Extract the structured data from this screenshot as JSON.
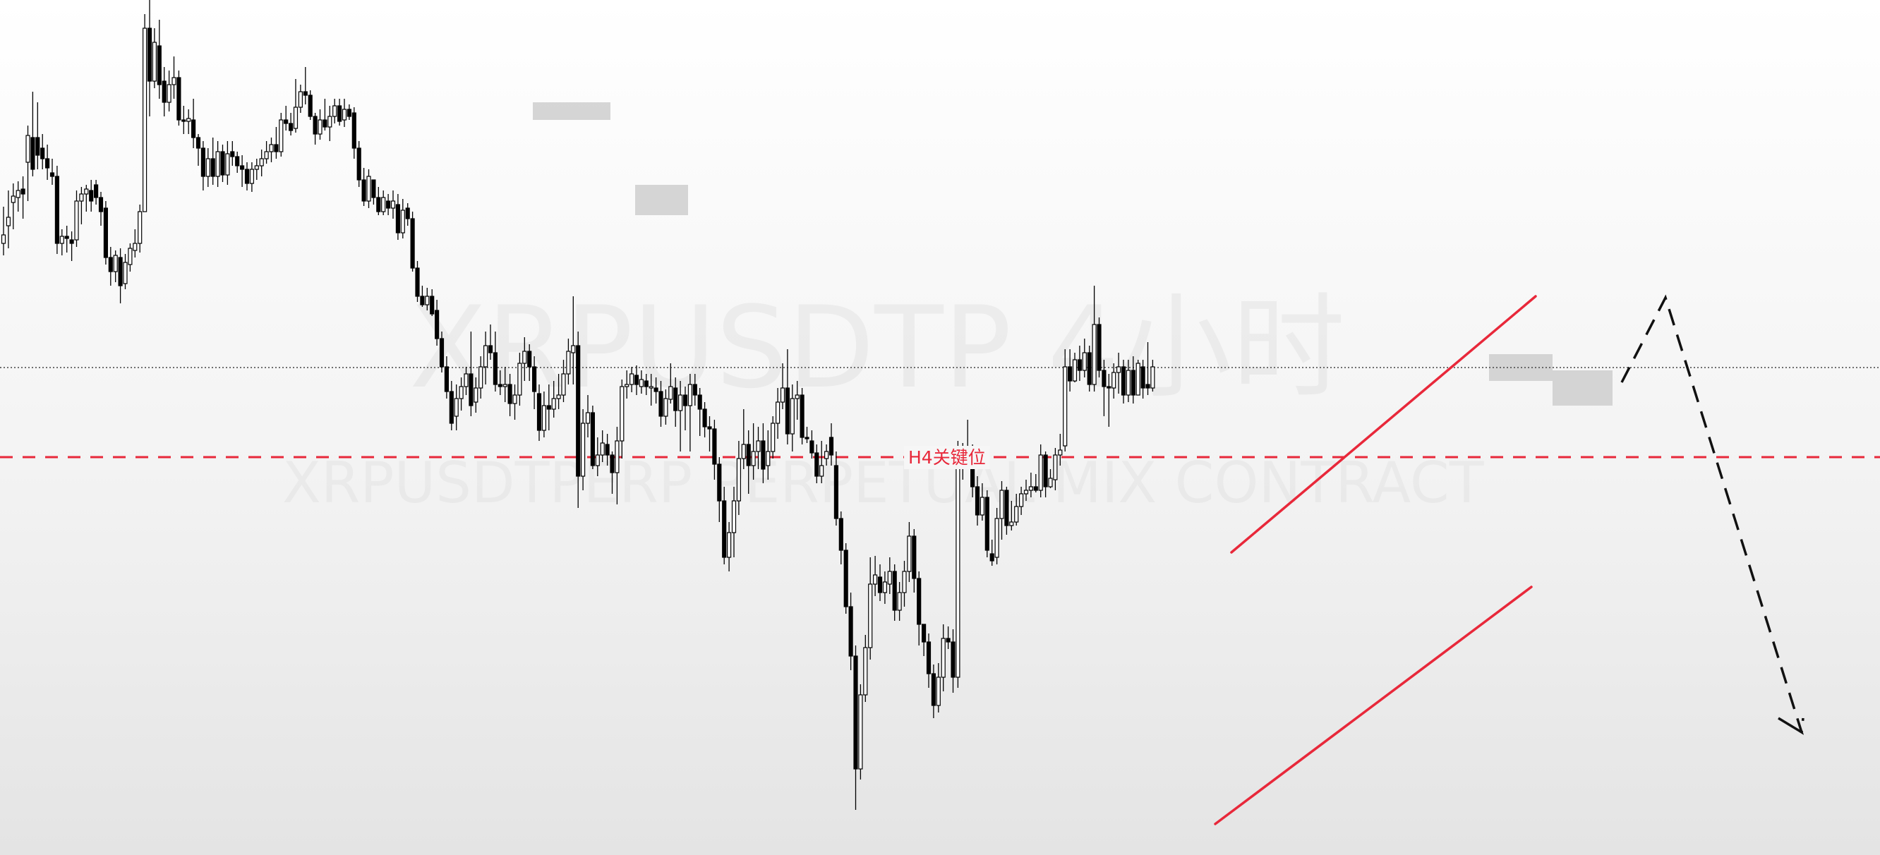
{
  "watermark": {
    "title": "XRPUSDTP 4小时",
    "subtitle": "XRPUSDTPERP PERPETUAL MIX CONTRACT"
  },
  "colors": {
    "bull_body": "#ffffff",
    "bear_body": "#000000",
    "wick": "#000000",
    "trendline": "#e8283a",
    "level": "#e8283a",
    "projection": "#111111",
    "zone": "#c8c8c8"
  },
  "chart_data": {
    "type": "candlestick",
    "title": "",
    "xlabel": "",
    "ylabel": "",
    "ylim": [
      0,
      1212
    ],
    "grid": false,
    "candles": [
      [
        345,
        333,
        293,
        362
      ],
      [
        320,
        308,
        270,
        352
      ],
      [
        287,
        278,
        260,
        325
      ],
      [
        280,
        270,
        257,
        300
      ],
      [
        268,
        275,
        250,
        310
      ],
      [
        230,
        192,
        178,
        285
      ],
      [
        195,
        240,
        130,
        250
      ],
      [
        195,
        220,
        145,
        240
      ],
      [
        210,
        225,
        190,
        240
      ],
      [
        225,
        238,
        205,
        255
      ],
      [
        245,
        250,
        225,
        262
      ],
      [
        250,
        345,
        235,
        360
      ],
      [
        345,
        335,
        325,
        362
      ],
      [
        335,
        338,
        320,
        358
      ],
      [
        340,
        345,
        328,
        370
      ],
      [
        340,
        285,
        270,
        350
      ],
      [
        285,
        275,
        265,
        318
      ],
      [
        275,
        268,
        262,
        300
      ],
      [
        270,
        285,
        255,
        300
      ],
      [
        262,
        280,
        255,
        290
      ],
      [
        280,
        300,
        272,
        320
      ],
      [
        295,
        365,
        285,
        375
      ],
      [
        365,
        385,
        350,
        405
      ],
      [
        385,
        362,
        355,
        400
      ],
      [
        365,
        405,
        352,
        430
      ],
      [
        402,
        372,
        360,
        410
      ],
      [
        375,
        352,
        345,
        385
      ],
      [
        355,
        345,
        325,
        365
      ],
      [
        345,
        300,
        290,
        358
      ],
      [
        300,
        40,
        20,
        300
      ],
      [
        40,
        115,
        0,
        165
      ],
      [
        115,
        60,
        40,
        125
      ],
      [
        65,
        120,
        28,
        140
      ],
      [
        115,
        145,
        95,
        165
      ],
      [
        145,
        120,
        100,
        158
      ],
      [
        120,
        110,
        80,
        140
      ],
      [
        110,
        170,
        100,
        178
      ],
      [
        170,
        172,
        150,
        190
      ],
      [
        172,
        168,
        155,
        190
      ],
      [
        170,
        195,
        140,
        210
      ],
      [
        195,
        210,
        190,
        235
      ],
      [
        210,
        250,
        200,
        270
      ],
      [
        250,
        225,
        210,
        265
      ],
      [
        225,
        250,
        195,
        262
      ],
      [
        250,
        215,
        200,
        265
      ],
      [
        215,
        248,
        205,
        258
      ],
      [
        248,
        218,
        200,
        262
      ],
      [
        215,
        222,
        200,
        235
      ],
      [
        222,
        235,
        215,
        245
      ],
      [
        235,
        240,
        220,
        265
      ],
      [
        240,
        260,
        230,
        270
      ],
      [
        260,
        240,
        230,
        272
      ],
      [
        240,
        235,
        225,
        255
      ],
      [
        235,
        225,
        212,
        250
      ],
      [
        225,
        215,
        200,
        232
      ],
      [
        215,
        205,
        195,
        230
      ],
      [
        205,
        215,
        180,
        225
      ],
      [
        215,
        170,
        160,
        222
      ],
      [
        170,
        175,
        150,
        185
      ],
      [
        175,
        185,
        160,
        192
      ],
      [
        182,
        152,
        112,
        188
      ],
      [
        152,
        130,
        120,
        160
      ],
      [
        130,
        135,
        95,
        148
      ],
      [
        135,
        165,
        128,
        170
      ],
      [
        165,
        190,
        160,
        205
      ],
      [
        190,
        170,
        155,
        198
      ],
      [
        170,
        180,
        140,
        185
      ],
      [
        180,
        165,
        150,
        200
      ],
      [
        165,
        150,
        140,
        175
      ],
      [
        150,
        172,
        140,
        178
      ],
      [
        170,
        155,
        140,
        180
      ],
      [
        155,
        165,
        148,
        170
      ],
      [
        160,
        210,
        152,
        225
      ],
      [
        210,
        255,
        200,
        265
      ],
      [
        255,
        285,
        238,
        292
      ],
      [
        285,
        250,
        240,
        295
      ],
      [
        255,
        280,
        265,
        290
      ],
      [
        280,
        300,
        265,
        305
      ],
      [
        300,
        280,
        270,
        305
      ],
      [
        285,
        295,
        275,
        305
      ],
      [
        295,
        285,
        270,
        310
      ],
      [
        290,
        330,
        275,
        340
      ],
      [
        330,
        298,
        282,
        338
      ],
      [
        295,
        310,
        288,
        320
      ],
      [
        310,
        380,
        300,
        385
      ],
      [
        380,
        420,
        370,
        428
      ],
      [
        420,
        432,
        405,
        435
      ],
      [
        432,
        420,
        408,
        440
      ],
      [
        420,
        445,
        410,
        448
      ],
      [
        440,
        480,
        425,
        490
      ],
      [
        480,
        520,
        470,
        528
      ],
      [
        520,
        555,
        505,
        565
      ],
      [
        555,
        600,
        540,
        610
      ],
      [
        590,
        565,
        545,
        610
      ],
      [
        565,
        548,
        535,
        582
      ],
      [
        548,
        530,
        520,
        560
      ],
      [
        530,
        575,
        470,
        590
      ],
      [
        570,
        550,
        535,
        585
      ],
      [
        550,
        520,
        505,
        565
      ],
      [
        520,
        490,
        470,
        545
      ],
      [
        490,
        500,
        460,
        510
      ],
      [
        500,
        545,
        470,
        555
      ],
      [
        545,
        548,
        525,
        560
      ],
      [
        548,
        545,
        520,
        570
      ],
      [
        545,
        572,
        530,
        590
      ],
      [
        572,
        560,
        545,
        595
      ],
      [
        560,
        515,
        500,
        575
      ],
      [
        515,
        498,
        478,
        540
      ],
      [
        498,
        520,
        488,
        540
      ],
      [
        520,
        555,
        505,
        580
      ],
      [
        558,
        610,
        545,
        625
      ],
      [
        610,
        575,
        555,
        620
      ],
      [
        575,
        580,
        545,
        610
      ],
      [
        580,
        565,
        540,
        592
      ],
      [
        565,
        560,
        530,
        580
      ],
      [
        560,
        530,
        510,
        570
      ],
      [
        530,
        498,
        480,
        545
      ],
      [
        500,
        490,
        420,
        545
      ],
      [
        490,
        675,
        470,
        720
      ],
      [
        675,
        600,
        580,
        695
      ],
      [
        600,
        585,
        560,
        620
      ],
      [
        585,
        660,
        575,
        665
      ],
      [
        660,
        645,
        620,
        675
      ],
      [
        645,
        628,
        610,
        655
      ],
      [
        630,
        645,
        615,
        660
      ],
      [
        645,
        670,
        640,
        700
      ],
      [
        670,
        625,
        605,
        715
      ],
      [
        625,
        548,
        538,
        650
      ],
      [
        548,
        545,
        525,
        565
      ],
      [
        545,
        530,
        520,
        556
      ],
      [
        532,
        545,
        518,
        560
      ],
      [
        548,
        538,
        525,
        558
      ],
      [
        540,
        548,
        530,
        560
      ],
      [
        550,
        548,
        530,
        575
      ],
      [
        550,
        555,
        535,
        572
      ],
      [
        555,
        590,
        540,
        605
      ],
      [
        590,
        565,
        552,
        602
      ],
      [
        566,
        548,
        515,
        572
      ],
      [
        550,
        582,
        535,
        605
      ],
      [
        582,
        560,
        540,
        640
      ],
      [
        560,
        575,
        548,
        610
      ],
      [
        575,
        545,
        530,
        640
      ],
      [
        545,
        560,
        530,
        575
      ],
      [
        560,
        580,
        550,
        618
      ],
      [
        580,
        605,
        570,
        620
      ],
      [
        605,
        608,
        590,
        640
      ],
      [
        608,
        658,
        595,
        680
      ],
      [
        658,
        710,
        648,
        740
      ],
      [
        710,
        790,
        690,
        800
      ],
      [
        790,
        755,
        740,
        810
      ],
      [
        755,
        710,
        690,
        790
      ],
      [
        710,
        650,
        625,
        730
      ],
      [
        650,
        630,
        580,
        665
      ],
      [
        630,
        660,
        610,
        700
      ],
      [
        660,
        640,
        600,
        680
      ],
      [
        640,
        625,
        605,
        665
      ],
      [
        625,
        665,
        600,
        685
      ],
      [
        660,
        640,
        610,
        680
      ],
      [
        640,
        600,
        590,
        650
      ],
      [
        600,
        570,
        550,
        622
      ],
      [
        570,
        550,
        515,
        580
      ],
      [
        550,
        615,
        495,
        630
      ],
      [
        615,
        565,
        545,
        640
      ],
      [
        565,
        560,
        540,
        595
      ],
      [
        560,
        620,
        550,
        630
      ],
      [
        620,
        620,
        605,
        628
      ],
      [
        625,
        642,
        610,
        650
      ],
      [
        642,
        675,
        630,
        685
      ],
      [
        675,
        660,
        625,
        685
      ],
      [
        650,
        640,
        630,
        660
      ],
      [
        620,
        645,
        600,
        660
      ],
      [
        660,
        735,
        640,
        745
      ],
      [
        735,
        780,
        725,
        800
      ],
      [
        780,
        860,
        770,
        870
      ],
      [
        860,
        930,
        840,
        950
      ],
      [
        930,
        1090,
        915,
        1148
      ],
      [
        1090,
        985,
        970,
        1105
      ],
      [
        985,
        918,
        900,
        995
      ],
      [
        918,
        828,
        790,
        935
      ],
      [
        828,
        815,
        788,
        845
      ],
      [
        818,
        840,
        800,
        852
      ],
      [
        840,
        825,
        810,
        856
      ],
      [
        828,
        810,
        790,
        842
      ],
      [
        810,
        865,
        800,
        880
      ],
      [
        865,
        840,
        825,
        880
      ],
      [
        840,
        810,
        795,
        860
      ],
      [
        810,
        760,
        740,
        825
      ],
      [
        760,
        820,
        750,
        840
      ],
      [
        820,
        885,
        810,
        915
      ],
      [
        885,
        910,
        895,
        930
      ],
      [
        910,
        955,
        898,
        975
      ],
      [
        955,
        1000,
        942,
        1018
      ],
      [
        1000,
        960,
        940,
        1010
      ],
      [
        960,
        905,
        885,
        980
      ],
      [
        905,
        910,
        888,
        920
      ],
      [
        910,
        960,
        892,
        982
      ],
      [
        960,
        635,
        625,
        975
      ],
      [
        635,
        645,
        628,
        680
      ],
      [
        645,
        640,
        595,
        660
      ],
      [
        640,
        690,
        630,
        705
      ],
      [
        690,
        730,
        675,
        745
      ],
      [
        730,
        705,
        685,
        738
      ],
      [
        705,
        780,
        695,
        790
      ],
      [
        785,
        795,
        765,
        802
      ],
      [
        790,
        735,
        720,
        800
      ],
      [
        735,
        695,
        682,
        765
      ],
      [
        695,
        745,
        690,
        758
      ],
      [
        745,
        740,
        710,
        752
      ],
      [
        740,
        718,
        700,
        745
      ],
      [
        718,
        700,
        690,
        730
      ],
      [
        700,
        695,
        680,
        710
      ],
      [
        695,
        690,
        670,
        705
      ],
      [
        690,
        695,
        672,
        698
      ],
      [
        695,
        645,
        630,
        705
      ],
      [
        645,
        690,
        640,
        705
      ],
      [
        690,
        678,
        665,
        692
      ],
      [
        680,
        645,
        635,
        695
      ],
      [
        645,
        638,
        615,
        660
      ],
      [
        632,
        520,
        495,
        640
      ],
      [
        520,
        540,
        495,
        555
      ],
      [
        540,
        510,
        500,
        542
      ],
      [
        510,
        525,
        490,
        540
      ],
      [
        525,
        500,
        480,
        535
      ],
      [
        500,
        545,
        490,
        555
      ],
      [
        545,
        460,
        405,
        555
      ],
      [
        460,
        525,
        450,
        535
      ],
      [
        525,
        548,
        510,
        590
      ],
      [
        548,
        550,
        530,
        605
      ],
      [
        550,
        528,
        515,
        565
      ],
      [
        528,
        520,
        500,
        558
      ],
      [
        520,
        560,
        510,
        572
      ],
      [
        560,
        525,
        510,
        570
      ],
      [
        525,
        560,
        505,
        572
      ],
      [
        560,
        515,
        510,
        560
      ],
      [
        520,
        550,
        510,
        565
      ],
      [
        545,
        550,
        485,
        560
      ],
      [
        550,
        520,
        510,
        555
      ]
    ],
    "x_start": 5,
    "x_step": 6.9,
    "zones": [
      [
        755,
        145,
        865,
        170
      ],
      [
        900,
        262,
        975,
        305
      ],
      [
        2110,
        502,
        2200,
        540
      ],
      [
        2200,
        525,
        2285,
        575
      ]
    ],
    "level": {
      "y": 648,
      "label": "H4关键位",
      "label_x": 1282
    },
    "price_line": {
      "y": 521
    },
    "trendlines": [
      [
        1722,
        1168,
        2170,
        832
      ],
      [
        1745,
        783,
        2176,
        420
      ]
    ],
    "projection": [
      [
        2298,
        542
      ],
      [
        2360,
        422
      ],
      [
        2553,
        1038
      ],
      [
        2520,
        1018
      ],
      [
        2553,
        1038
      ],
      [
        2555,
        1018
      ]
    ]
  }
}
